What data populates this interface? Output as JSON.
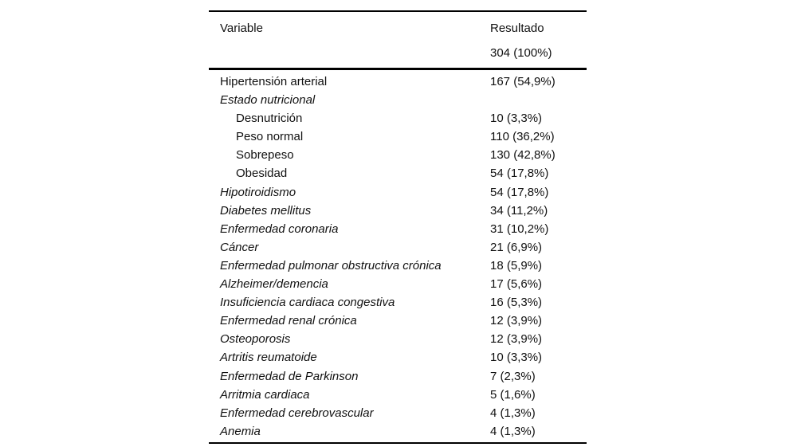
{
  "table": {
    "header": {
      "variable_label": "Variable",
      "result_label": "Resultado",
      "result_total": "304 (100%)"
    },
    "rows": [
      {
        "label": "Hipertensión arterial",
        "value": "167 (54,9%)",
        "italic": false,
        "indent": 0
      },
      {
        "label": "Estado nutricional",
        "value": "",
        "italic": true,
        "indent": 0
      },
      {
        "label": "Desnutrición",
        "value": "10 (3,3%)",
        "italic": false,
        "indent": 1
      },
      {
        "label": "Peso normal",
        "value": "110 (36,2%)",
        "italic": false,
        "indent": 1
      },
      {
        "label": "Sobrepeso",
        "value": "130 (42,8%)",
        "italic": false,
        "indent": 1
      },
      {
        "label": "Obesidad",
        "value": "54 (17,8%)",
        "italic": false,
        "indent": 1
      },
      {
        "label": "Hipotiroidismo",
        "value": "54 (17,8%)",
        "italic": true,
        "indent": 0
      },
      {
        "label": "Diabetes mellitus",
        "value": "34 (11,2%)",
        "italic": true,
        "indent": 0
      },
      {
        "label": "Enfermedad coronaria",
        "value": "31 (10,2%)",
        "italic": true,
        "indent": 0
      },
      {
        "label": "Cáncer",
        "value": "21 (6,9%)",
        "italic": true,
        "indent": 0
      },
      {
        "label": "Enfermedad pulmonar obstructiva crónica",
        "value": "18 (5,9%)",
        "italic": true,
        "indent": 0
      },
      {
        "label": "Alzheimer/demencia",
        "value": "17 (5,6%)",
        "italic": true,
        "indent": 0
      },
      {
        "label": "Insuficiencia cardiaca congestiva",
        "value": "16 (5,3%)",
        "italic": true,
        "indent": 0
      },
      {
        "label": "Enfermedad renal crónica",
        "value": "12 (3,9%)",
        "italic": true,
        "indent": 0
      },
      {
        "label": "Osteoporosis",
        "value": "12 (3,9%)",
        "italic": true,
        "indent": 0
      },
      {
        "label": "Artritis reumatoide",
        "value": "10 (3,3%)",
        "italic": true,
        "indent": 0
      },
      {
        "label": "Enfermedad de Parkinson",
        "value": "7 (2,3%)",
        "italic": true,
        "indent": 0
      },
      {
        "label": "Arritmia cardiaca",
        "value": "5 (1,6%)",
        "italic": true,
        "indent": 0
      },
      {
        "label": "Enfermedad cerebrovascular",
        "value": "4 (1,3%)",
        "italic": true,
        "indent": 0
      },
      {
        "label": "Anemia",
        "value": "4 (1,3%)",
        "italic": true,
        "indent": 0
      }
    ],
    "colors": {
      "text": "#111111",
      "rule": "#000000",
      "background": "#ffffff"
    }
  }
}
